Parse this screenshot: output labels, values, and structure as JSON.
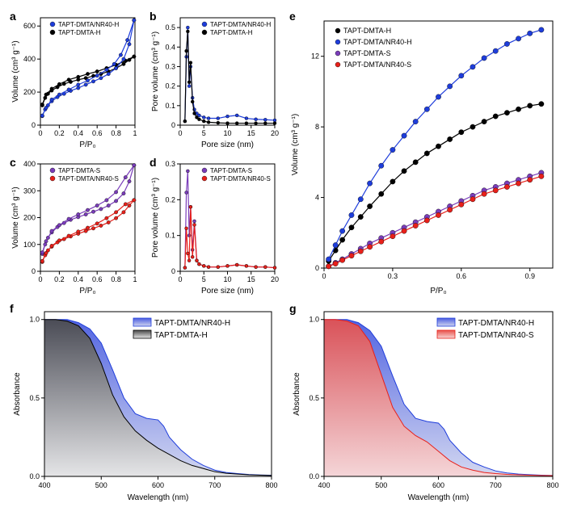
{
  "colors": {
    "black": "#000000",
    "blue": "#1e3ddb",
    "red": "#e8201a",
    "purple": "#7a3dba",
    "grad_black_top": "#4a4a4a",
    "grad_black_bot": "#e6e6e6",
    "grad_blue_top": "#4a5de0",
    "grad_blue_bot": "#d0d5f0",
    "grad_red_top": "#e8504a",
    "grad_red_bot": "#f8d5d5"
  },
  "series_names": {
    "th": "TAPT-DMTA-H",
    "tnh": "TAPT-DMTA/NR40-H",
    "ts": "TAPT-DMTA-S",
    "tns": "TAPT-DMTA/NR40-S"
  },
  "labels": {
    "pp0": "P/P₀",
    "volume": "Volume (cm³ g⁻¹)",
    "pore_volume": "Pore volume (cm³ g⁻¹)",
    "pore_size": "Pore size (nm)",
    "absorbance": "Absorbance",
    "wavelength": "Wavelength (nm)"
  },
  "panel_a": {
    "xlim": [
      0,
      1
    ],
    "ylim": [
      0,
      650
    ],
    "xticks": [
      0.0,
      0.2,
      0.4,
      0.6,
      0.8,
      1.0
    ],
    "yticks": [
      0,
      200,
      400,
      600
    ],
    "th_ads": [
      [
        0.02,
        120
      ],
      [
        0.05,
        165
      ],
      [
        0.08,
        190
      ],
      [
        0.12,
        210
      ],
      [
        0.18,
        230
      ],
      [
        0.25,
        250
      ],
      [
        0.32,
        262
      ],
      [
        0.4,
        275
      ],
      [
        0.48,
        285
      ],
      [
        0.56,
        298
      ],
      [
        0.64,
        310
      ],
      [
        0.72,
        325
      ],
      [
        0.8,
        345
      ],
      [
        0.88,
        370
      ],
      [
        0.94,
        395
      ],
      [
        0.99,
        415
      ]
    ],
    "th_des": [
      [
        0.99,
        415
      ],
      [
        0.9,
        390
      ],
      [
        0.8,
        365
      ],
      [
        0.7,
        345
      ],
      [
        0.6,
        325
      ],
      [
        0.5,
        310
      ],
      [
        0.4,
        292
      ],
      [
        0.3,
        275
      ],
      [
        0.2,
        248
      ],
      [
        0.12,
        220
      ],
      [
        0.06,
        185
      ],
      [
        0.02,
        125
      ]
    ],
    "tnh_ads": [
      [
        0.02,
        55
      ],
      [
        0.05,
        95
      ],
      [
        0.08,
        120
      ],
      [
        0.12,
        145
      ],
      [
        0.18,
        170
      ],
      [
        0.25,
        190
      ],
      [
        0.32,
        208
      ],
      [
        0.4,
        225
      ],
      [
        0.48,
        245
      ],
      [
        0.56,
        265
      ],
      [
        0.64,
        285
      ],
      [
        0.72,
        310
      ],
      [
        0.8,
        345
      ],
      [
        0.88,
        400
      ],
      [
        0.94,
        490
      ],
      [
        0.99,
        635
      ]
    ],
    "tnh_des": [
      [
        0.99,
        635
      ],
      [
        0.92,
        515
      ],
      [
        0.85,
        425
      ],
      [
        0.78,
        370
      ],
      [
        0.7,
        335
      ],
      [
        0.6,
        300
      ],
      [
        0.5,
        270
      ],
      [
        0.4,
        245
      ],
      [
        0.3,
        215
      ],
      [
        0.2,
        185
      ],
      [
        0.12,
        155
      ],
      [
        0.06,
        105
      ],
      [
        0.02,
        58
      ]
    ]
  },
  "panel_b": {
    "xlim": [
      0,
      20
    ],
    "ylim": [
      0,
      0.55
    ],
    "xticks": [
      0,
      5,
      10,
      15,
      20
    ],
    "yticks": [
      0.0,
      0.1,
      0.2,
      0.3,
      0.4,
      0.5
    ],
    "th": [
      [
        1.0,
        0.02
      ],
      [
        1.3,
        0.38
      ],
      [
        1.6,
        0.48
      ],
      [
        1.9,
        0.22
      ],
      [
        2.2,
        0.32
      ],
      [
        2.6,
        0.12
      ],
      [
        3.0,
        0.06
      ],
      [
        3.5,
        0.04
      ],
      [
        4,
        0.03
      ],
      [
        5,
        0.02
      ],
      [
        6,
        0.015
      ],
      [
        8,
        0.012
      ],
      [
        10,
        0.01
      ],
      [
        12,
        0.01
      ],
      [
        14,
        0.01
      ],
      [
        16,
        0.01
      ],
      [
        18,
        0.01
      ],
      [
        20,
        0.01
      ]
    ],
    "tnh": [
      [
        1.0,
        0.02
      ],
      [
        1.3,
        0.35
      ],
      [
        1.6,
        0.5
      ],
      [
        1.9,
        0.2
      ],
      [
        2.2,
        0.3
      ],
      [
        2.6,
        0.14
      ],
      [
        3.0,
        0.08
      ],
      [
        3.5,
        0.06
      ],
      [
        4,
        0.05
      ],
      [
        5,
        0.04
      ],
      [
        6,
        0.035
      ],
      [
        8,
        0.035
      ],
      [
        10,
        0.045
      ],
      [
        12,
        0.05
      ],
      [
        14,
        0.035
      ],
      [
        16,
        0.03
      ],
      [
        18,
        0.028
      ],
      [
        20,
        0.025
      ]
    ]
  },
  "panel_c": {
    "xlim": [
      0,
      1
    ],
    "ylim": [
      0,
      400
    ],
    "xticks": [
      0.0,
      0.2,
      0.4,
      0.6,
      0.8,
      1.0
    ],
    "yticks": [
      0,
      100,
      200,
      300,
      400
    ],
    "ts_ads": [
      [
        0.02,
        65
      ],
      [
        0.05,
        100
      ],
      [
        0.08,
        125
      ],
      [
        0.12,
        145
      ],
      [
        0.18,
        165
      ],
      [
        0.25,
        180
      ],
      [
        0.32,
        192
      ],
      [
        0.4,
        202
      ],
      [
        0.48,
        212
      ],
      [
        0.56,
        222
      ],
      [
        0.64,
        232
      ],
      [
        0.72,
        245
      ],
      [
        0.8,
        262
      ],
      [
        0.88,
        290
      ],
      [
        0.94,
        335
      ],
      [
        0.99,
        395
      ]
    ],
    "ts_des": [
      [
        0.99,
        395
      ],
      [
        0.9,
        350
      ],
      [
        0.8,
        295
      ],
      [
        0.7,
        265
      ],
      [
        0.6,
        245
      ],
      [
        0.5,
        228
      ],
      [
        0.4,
        212
      ],
      [
        0.3,
        195
      ],
      [
        0.2,
        172
      ],
      [
        0.12,
        150
      ],
      [
        0.06,
        112
      ],
      [
        0.02,
        70
      ]
    ],
    "tns_ads": [
      [
        0.02,
        35
      ],
      [
        0.05,
        60
      ],
      [
        0.08,
        78
      ],
      [
        0.12,
        92
      ],
      [
        0.18,
        108
      ],
      [
        0.25,
        120
      ],
      [
        0.32,
        130
      ],
      [
        0.4,
        140
      ],
      [
        0.48,
        150
      ],
      [
        0.56,
        160
      ],
      [
        0.64,
        170
      ],
      [
        0.72,
        182
      ],
      [
        0.8,
        198
      ],
      [
        0.88,
        220
      ],
      [
        0.94,
        245
      ],
      [
        0.99,
        265
      ]
    ],
    "tns_des": [
      [
        0.99,
        265
      ],
      [
        0.9,
        250
      ],
      [
        0.8,
        220
      ],
      [
        0.7,
        198
      ],
      [
        0.6,
        178
      ],
      [
        0.5,
        162
      ],
      [
        0.4,
        148
      ],
      [
        0.3,
        132
      ],
      [
        0.2,
        115
      ],
      [
        0.12,
        95
      ],
      [
        0.06,
        68
      ],
      [
        0.02,
        38
      ]
    ]
  },
  "panel_d": {
    "xlim": [
      0,
      20
    ],
    "ylim": [
      0,
      0.3
    ],
    "xticks": [
      0,
      5,
      10,
      15,
      20
    ],
    "yticks": [
      0.0,
      0.1,
      0.2,
      0.3
    ],
    "ts": [
      [
        1.0,
        0.01
      ],
      [
        1.3,
        0.22
      ],
      [
        1.6,
        0.28
      ],
      [
        1.9,
        0.1
      ],
      [
        2.2,
        0.18
      ],
      [
        2.6,
        0.06
      ],
      [
        3.0,
        0.14
      ],
      [
        3.5,
        0.03
      ],
      [
        4,
        0.02
      ],
      [
        5,
        0.015
      ],
      [
        6,
        0.012
      ],
      [
        8,
        0.012
      ],
      [
        10,
        0.015
      ],
      [
        12,
        0.018
      ],
      [
        14,
        0.015
      ],
      [
        16,
        0.012
      ],
      [
        18,
        0.012
      ],
      [
        20,
        0.01
      ]
    ],
    "tns": [
      [
        1.0,
        0.01
      ],
      [
        1.3,
        0.12
      ],
      [
        1.6,
        0.05
      ],
      [
        1.9,
        0.03
      ],
      [
        2.2,
        0.18
      ],
      [
        2.6,
        0.04
      ],
      [
        3.0,
        0.13
      ],
      [
        3.5,
        0.03
      ],
      [
        4,
        0.02
      ],
      [
        5,
        0.015
      ],
      [
        6,
        0.012
      ],
      [
        8,
        0.012
      ],
      [
        10,
        0.015
      ],
      [
        12,
        0.018
      ],
      [
        14,
        0.015
      ],
      [
        16,
        0.012
      ],
      [
        18,
        0.012
      ],
      [
        20,
        0.01
      ]
    ]
  },
  "panel_e": {
    "xlim": [
      0,
      1
    ],
    "ylim": [
      0,
      14
    ],
    "xticks": [
      0.0,
      0.3,
      0.6,
      0.9
    ],
    "yticks": [
      0,
      4,
      8,
      12
    ],
    "th": [
      [
        0.02,
        0.4
      ],
      [
        0.05,
        1.0
      ],
      [
        0.08,
        1.6
      ],
      [
        0.12,
        2.3
      ],
      [
        0.16,
        2.9
      ],
      [
        0.2,
        3.5
      ],
      [
        0.25,
        4.2
      ],
      [
        0.3,
        4.9
      ],
      [
        0.35,
        5.5
      ],
      [
        0.4,
        6.0
      ],
      [
        0.45,
        6.5
      ],
      [
        0.5,
        6.9
      ],
      [
        0.55,
        7.3
      ],
      [
        0.6,
        7.7
      ],
      [
        0.65,
        8.0
      ],
      [
        0.7,
        8.3
      ],
      [
        0.75,
        8.6
      ],
      [
        0.8,
        8.8
      ],
      [
        0.85,
        9.0
      ],
      [
        0.9,
        9.2
      ],
      [
        0.95,
        9.3
      ]
    ],
    "tnh": [
      [
        0.02,
        0.5
      ],
      [
        0.05,
        1.3
      ],
      [
        0.08,
        2.1
      ],
      [
        0.12,
        3.0
      ],
      [
        0.16,
        3.9
      ],
      [
        0.2,
        4.8
      ],
      [
        0.25,
        5.8
      ],
      [
        0.3,
        6.7
      ],
      [
        0.35,
        7.5
      ],
      [
        0.4,
        8.3
      ],
      [
        0.45,
        9.0
      ],
      [
        0.5,
        9.7
      ],
      [
        0.55,
        10.3
      ],
      [
        0.6,
        10.9
      ],
      [
        0.65,
        11.4
      ],
      [
        0.7,
        11.9
      ],
      [
        0.75,
        12.3
      ],
      [
        0.8,
        12.7
      ],
      [
        0.85,
        13.0
      ],
      [
        0.9,
        13.3
      ],
      [
        0.95,
        13.5
      ]
    ],
    "ts": [
      [
        0.02,
        0.1
      ],
      [
        0.05,
        0.3
      ],
      [
        0.08,
        0.5
      ],
      [
        0.12,
        0.8
      ],
      [
        0.16,
        1.1
      ],
      [
        0.2,
        1.4
      ],
      [
        0.25,
        1.7
      ],
      [
        0.3,
        2.0
      ],
      [
        0.35,
        2.3
      ],
      [
        0.4,
        2.6
      ],
      [
        0.45,
        2.9
      ],
      [
        0.5,
        3.2
      ],
      [
        0.55,
        3.5
      ],
      [
        0.6,
        3.8
      ],
      [
        0.65,
        4.1
      ],
      [
        0.7,
        4.4
      ],
      [
        0.75,
        4.6
      ],
      [
        0.8,
        4.8
      ],
      [
        0.85,
        5.0
      ],
      [
        0.9,
        5.2
      ],
      [
        0.95,
        5.4
      ]
    ],
    "tns": [
      [
        0.02,
        0.1
      ],
      [
        0.05,
        0.25
      ],
      [
        0.08,
        0.45
      ],
      [
        0.12,
        0.7
      ],
      [
        0.16,
        0.95
      ],
      [
        0.2,
        1.2
      ],
      [
        0.25,
        1.5
      ],
      [
        0.3,
        1.8
      ],
      [
        0.35,
        2.1
      ],
      [
        0.4,
        2.4
      ],
      [
        0.45,
        2.7
      ],
      [
        0.5,
        3.0
      ],
      [
        0.55,
        3.3
      ],
      [
        0.6,
        3.6
      ],
      [
        0.65,
        3.9
      ],
      [
        0.7,
        4.2
      ],
      [
        0.75,
        4.4
      ],
      [
        0.8,
        4.6
      ],
      [
        0.85,
        4.8
      ],
      [
        0.9,
        5.0
      ],
      [
        0.95,
        5.2
      ]
    ]
  },
  "panel_f": {
    "xlim": [
      400,
      800
    ],
    "ylim": [
      0,
      1.05
    ],
    "xticks": [
      400,
      500,
      600,
      700,
      800
    ],
    "yticks": [
      0.0,
      0.5,
      1.0
    ],
    "th": [
      [
        400,
        1.0
      ],
      [
        420,
        1.0
      ],
      [
        440,
        0.99
      ],
      [
        460,
        0.96
      ],
      [
        480,
        0.88
      ],
      [
        500,
        0.72
      ],
      [
        520,
        0.52
      ],
      [
        540,
        0.38
      ],
      [
        560,
        0.29
      ],
      [
        580,
        0.23
      ],
      [
        600,
        0.18
      ],
      [
        620,
        0.14
      ],
      [
        640,
        0.1
      ],
      [
        660,
        0.07
      ],
      [
        680,
        0.05
      ],
      [
        700,
        0.03
      ],
      [
        720,
        0.02
      ],
      [
        740,
        0.015
      ],
      [
        760,
        0.01
      ],
      [
        780,
        0.008
      ],
      [
        800,
        0.006
      ]
    ],
    "tnh": [
      [
        400,
        1.0
      ],
      [
        420,
        1.0
      ],
      [
        440,
        1.0
      ],
      [
        460,
        0.98
      ],
      [
        480,
        0.94
      ],
      [
        500,
        0.85
      ],
      [
        520,
        0.68
      ],
      [
        540,
        0.5
      ],
      [
        560,
        0.4
      ],
      [
        580,
        0.37
      ],
      [
        600,
        0.36
      ],
      [
        610,
        0.32
      ],
      [
        620,
        0.25
      ],
      [
        640,
        0.17
      ],
      [
        660,
        0.11
      ],
      [
        680,
        0.07
      ],
      [
        700,
        0.04
      ],
      [
        720,
        0.025
      ],
      [
        740,
        0.018
      ],
      [
        760,
        0.012
      ],
      [
        780,
        0.009
      ],
      [
        800,
        0.007
      ]
    ]
  },
  "panel_g": {
    "xlim": [
      400,
      800
    ],
    "ylim": [
      0,
      1.05
    ],
    "xticks": [
      400,
      500,
      600,
      700,
      800
    ],
    "yticks": [
      0.0,
      0.5,
      1.0
    ],
    "tns": [
      [
        400,
        1.0
      ],
      [
        420,
        1.0
      ],
      [
        440,
        0.99
      ],
      [
        460,
        0.96
      ],
      [
        480,
        0.86
      ],
      [
        500,
        0.65
      ],
      [
        520,
        0.44
      ],
      [
        540,
        0.32
      ],
      [
        560,
        0.26
      ],
      [
        580,
        0.22
      ],
      [
        600,
        0.16
      ],
      [
        620,
        0.1
      ],
      [
        640,
        0.06
      ],
      [
        660,
        0.04
      ],
      [
        680,
        0.025
      ],
      [
        700,
        0.018
      ],
      [
        720,
        0.013
      ],
      [
        740,
        0.01
      ],
      [
        760,
        0.008
      ],
      [
        780,
        0.006
      ],
      [
        800,
        0.005
      ]
    ],
    "tnh": [
      [
        400,
        1.0
      ],
      [
        420,
        1.0
      ],
      [
        440,
        1.0
      ],
      [
        460,
        0.98
      ],
      [
        480,
        0.93
      ],
      [
        500,
        0.83
      ],
      [
        520,
        0.64
      ],
      [
        540,
        0.46
      ],
      [
        560,
        0.37
      ],
      [
        580,
        0.35
      ],
      [
        600,
        0.34
      ],
      [
        610,
        0.3
      ],
      [
        620,
        0.23
      ],
      [
        640,
        0.15
      ],
      [
        660,
        0.09
      ],
      [
        680,
        0.06
      ],
      [
        700,
        0.035
      ],
      [
        720,
        0.022
      ],
      [
        740,
        0.015
      ],
      [
        760,
        0.011
      ],
      [
        780,
        0.008
      ],
      [
        800,
        0.006
      ]
    ]
  }
}
